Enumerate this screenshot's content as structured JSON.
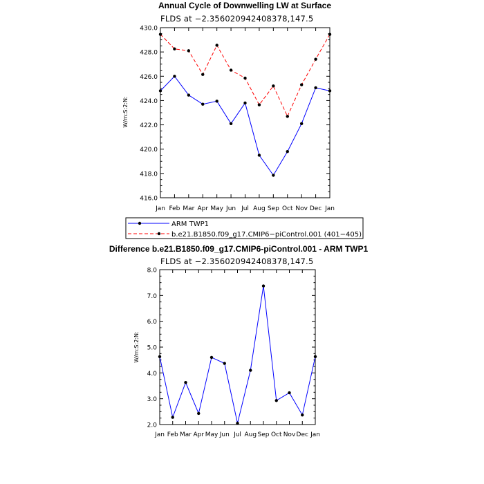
{
  "chart_data": [
    {
      "type": "line",
      "title": "Annual Cycle of Downwelling LW at Surface",
      "subtitle": "FLDS at −2.356020942408378,147.5",
      "ylabel": "W/m:S:2:N:",
      "xlabel": "",
      "categories": [
        "Jan",
        "Feb",
        "Mar",
        "Apr",
        "May",
        "Jun",
        "Jul",
        "Aug",
        "Sep",
        "Oct",
        "Nov",
        "Dec",
        "Jan"
      ],
      "ylim": [
        416.0,
        430.0
      ],
      "yticks": [
        "416.0",
        "418.0",
        "420.0",
        "422.0",
        "424.0",
        "426.0",
        "428.0",
        "430.0"
      ],
      "series": [
        {
          "name": "ARM TWP1",
          "color": "#0000ff",
          "dash": "solid",
          "values": [
            424.8,
            426.0,
            424.45,
            423.7,
            423.95,
            422.1,
            423.8,
            419.5,
            417.85,
            419.8,
            422.1,
            425.05,
            424.8
          ]
        },
        {
          "name": "b.e21.B1850.f09_g17.CMIP6−piControl.001 (401−405)",
          "color": "#ff0000",
          "dash": "dashed",
          "values": [
            429.45,
            428.25,
            428.1,
            426.15,
            428.55,
            426.5,
            425.85,
            423.65,
            425.2,
            422.7,
            425.3,
            427.4,
            429.45
          ]
        }
      ],
      "legend": "below"
    },
    {
      "type": "line",
      "title": "Difference b.e21.B1850.f09_g17.CMIP6-piControl.001 - ARM TWP1",
      "subtitle": "FLDS at −2.356020942408378,147.5",
      "ylabel": "W/m:S:2:N:",
      "xlabel": "",
      "categories": [
        "Jan",
        "Feb",
        "Mar",
        "Apr",
        "May",
        "Jun",
        "Jul",
        "Aug",
        "Sep",
        "Oct",
        "Nov",
        "Dec",
        "Jan"
      ],
      "ylim": [
        2.0,
        8.0
      ],
      "yticks": [
        "2.0",
        "3.0",
        "4.0",
        "5.0",
        "6.0",
        "7.0",
        "8.0"
      ],
      "series": [
        {
          "color": "#0000ff",
          "dash": "solid",
          "values": [
            4.63,
            2.28,
            3.63,
            2.43,
            4.6,
            4.37,
            2.05,
            4.1,
            7.37,
            2.93,
            3.23,
            2.37,
            4.63
          ]
        }
      ]
    }
  ]
}
